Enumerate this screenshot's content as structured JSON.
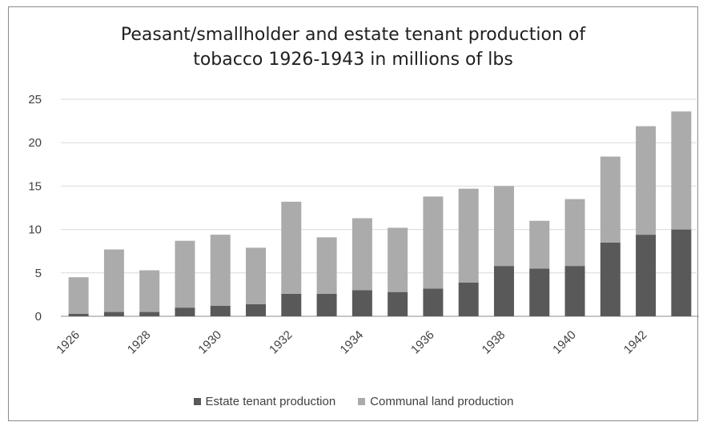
{
  "chart_data": {
    "type": "bar",
    "stacked": true,
    "title_lines": [
      "Peasant/smallholder and estate tenant production of",
      "tobacco 1926-1943 in millions of lbs"
    ],
    "categories": [
      "1926",
      "1927",
      "1928",
      "1929",
      "1930",
      "1931",
      "1932",
      "1933",
      "1934",
      "1935",
      "1936",
      "1937",
      "1938",
      "1939",
      "1940",
      "1941",
      "1942",
      "1943"
    ],
    "tick_labels": [
      "1926",
      "",
      "1928",
      "",
      "1930",
      "",
      "1932",
      "",
      "1934",
      "",
      "1936",
      "",
      "1938",
      "",
      "1940",
      "",
      "1942",
      ""
    ],
    "series": [
      {
        "name": "Estate tenant production",
        "color": "#595959",
        "values": [
          0.3,
          0.5,
          0.5,
          1.0,
          1.2,
          1.4,
          2.6,
          2.6,
          3.0,
          2.8,
          3.2,
          3.9,
          5.8,
          5.5,
          5.8,
          8.5,
          9.4,
          10.0
        ]
      },
      {
        "name": "Communal land production",
        "color": "#ababab",
        "values": [
          4.2,
          7.2,
          4.8,
          7.7,
          8.2,
          6.5,
          10.6,
          6.5,
          8.3,
          7.4,
          10.6,
          10.8,
          9.2,
          5.5,
          7.7,
          9.9,
          12.5,
          13.6
        ]
      }
    ],
    "ylim": [
      0,
      25
    ],
    "yticks": [
      0,
      5,
      10,
      15,
      20,
      25
    ],
    "grid": true,
    "legend_position": "bottom"
  }
}
